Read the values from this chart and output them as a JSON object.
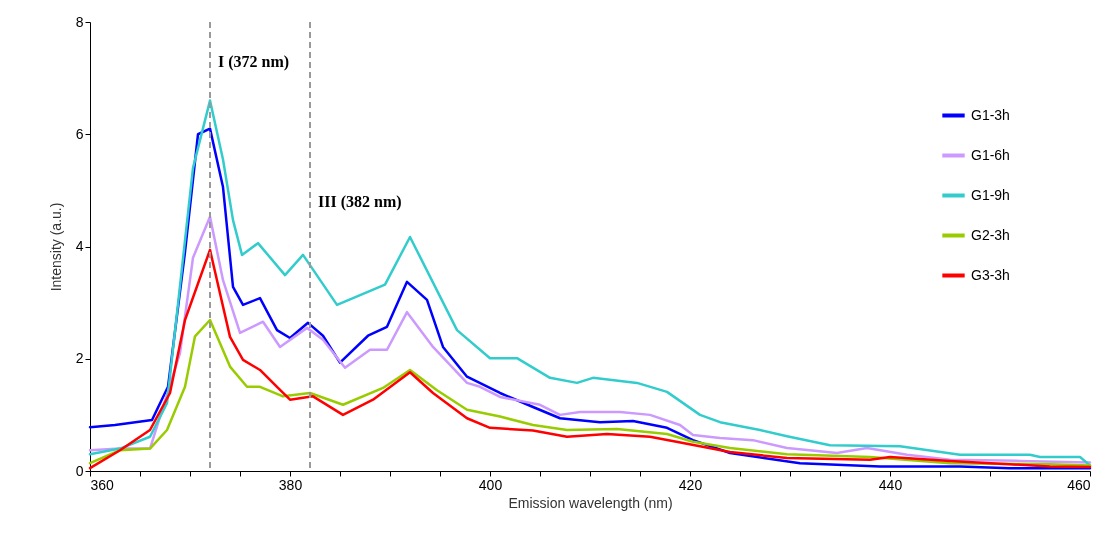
{
  "chart_data": {
    "type": "line",
    "xlabel": "Emission wavelength (nm)",
    "ylabel": "Intensity (a.u.)",
    "xlim": [
      360,
      460
    ],
    "xticks": [
      360,
      {
        "value": 365,
        "label": null
      },
      {
        "value": 370,
        "label": null
      },
      {
        "value": 375,
        "label": null
      },
      380,
      {
        "value": 385,
        "label": null
      },
      {
        "value": 390,
        "label": null
      },
      {
        "value": 395,
        "label": null
      },
      400,
      {
        "value": 405,
        "label": null
      },
      {
        "value": 410,
        "label": null
      },
      {
        "value": 415,
        "label": null
      },
      420,
      {
        "value": 425,
        "label": null
      },
      {
        "value": 430,
        "label": null
      },
      {
        "value": 435,
        "label": null
      },
      440,
      {
        "value": 445,
        "label": null
      },
      {
        "value": 450,
        "label": null
      },
      {
        "value": 455,
        "label": null
      },
      460
    ],
    "ylim": [
      0,
      8
    ],
    "yticks": [
      0,
      2,
      4,
      6,
      8
    ],
    "grid": false,
    "legend": "top right",
    "line_style": "solid",
    "marker": "none",
    "ref_lines": [
      {
        "axis": "x",
        "value": 372,
        "label": "I (372 nm)",
        "color": "#999999",
        "line_style": "dashed"
      },
      {
        "axis": "x",
        "value": 382,
        "label": "III (382  nm)",
        "color": "#999999",
        "line_style": "dashed"
      }
    ],
    "series": [
      {
        "name": "G1-3h",
        "color": "#0000ff",
        "x": [
          360,
          362.5,
          366.2,
          367.8,
          369.5,
          370.8,
          372,
          373.3,
          374.3,
          375.3,
          377,
          378.7,
          380,
          381.8,
          383.3,
          385,
          387.8,
          389.7,
          391.7,
          393.7,
          395.3,
          397.7,
          401,
          404.3,
          407,
          411,
          414.3,
          417.7,
          420.3,
          424,
          431,
          439,
          447,
          452,
          460
        ],
        "values": [
          0.78,
          0.82,
          0.91,
          1.5,
          3.9,
          6.0,
          6.1,
          5.06,
          3.28,
          2.96,
          3.08,
          2.51,
          2.37,
          2.64,
          2.41,
          1.93,
          2.41,
          2.57,
          3.37,
          3.05,
          2.21,
          1.68,
          1.39,
          1.14,
          0.94,
          0.87,
          0.89,
          0.77,
          0.55,
          0.32,
          0.14,
          0.08,
          0.08,
          0.05,
          0.05
        ]
      },
      {
        "name": "G1-6h",
        "color": "#cc99ff",
        "x": [
          360,
          363,
          366,
          369,
          370.3,
          372,
          373.3,
          375,
          377.3,
          379,
          381.7,
          383.3,
          385.5,
          388,
          389.7,
          391.7,
          394.3,
          397.7,
          399,
          401,
          405,
          407,
          409,
          413,
          416,
          419,
          420.3,
          423,
          426.3,
          429.7,
          434.7,
          437.7,
          441.7,
          446,
          453,
          460
        ],
        "values": [
          0.37,
          0.4,
          0.4,
          2.1,
          3.8,
          4.53,
          3.4,
          2.46,
          2.66,
          2.21,
          2.55,
          2.34,
          1.84,
          2.16,
          2.16,
          2.83,
          2.21,
          1.57,
          1.5,
          1.32,
          1.18,
          1.0,
          1.05,
          1.05,
          1.0,
          0.82,
          0.64,
          0.59,
          0.55,
          0.41,
          0.32,
          0.41,
          0.29,
          0.2,
          0.18,
          0.15
        ]
      },
      {
        "name": "G1-9h",
        "color": "#33cccc",
        "x": [
          360,
          363,
          366,
          367.7,
          369,
          370.3,
          372,
          373.3,
          374.3,
          375.2,
          376.8,
          379.5,
          381.3,
          384.7,
          389.5,
          392,
          396.7,
          400,
          402.7,
          406,
          408.7,
          410.3,
          414.7,
          417.7,
          421,
          423,
          427,
          429.7,
          434,
          441,
          447,
          454,
          455,
          459,
          460
        ],
        "values": [
          0.3,
          0.4,
          0.61,
          1.21,
          3.3,
          5.4,
          6.6,
          5.55,
          4.47,
          3.85,
          4.06,
          3.49,
          3.85,
          2.96,
          3.32,
          4.17,
          2.51,
          2.01,
          2.01,
          1.66,
          1.57,
          1.66,
          1.57,
          1.41,
          1.0,
          0.87,
          0.73,
          0.62,
          0.46,
          0.44,
          0.29,
          0.29,
          0.25,
          0.25,
          0.1
        ]
      },
      {
        "name": "G2-3h",
        "color": "#99cc00",
        "x": [
          360,
          363,
          366,
          367.7,
          369.5,
          370.5,
          372,
          374,
          375.7,
          377,
          379.3,
          382,
          385.3,
          389.3,
          392,
          394.7,
          397.7,
          401,
          404.3,
          407.7,
          412.7,
          417.7,
          420.3,
          424,
          429.7,
          438,
          446,
          456,
          460
        ],
        "values": [
          0.14,
          0.37,
          0.4,
          0.73,
          1.5,
          2.4,
          2.69,
          1.86,
          1.5,
          1.5,
          1.33,
          1.39,
          1.18,
          1.48,
          1.8,
          1.44,
          1.09,
          0.97,
          0.82,
          0.73,
          0.75,
          0.66,
          0.52,
          0.41,
          0.3,
          0.25,
          0.14,
          0.12,
          0.1
        ]
      },
      {
        "name": "G3-3h",
        "color": "#ff0000",
        "x": [
          360,
          363,
          366,
          368,
          369.5,
          372,
          374,
          375.3,
          377,
          378.7,
          380,
          382.3,
          385.3,
          388.3,
          392,
          394.3,
          397.7,
          400,
          404.3,
          407.7,
          411.7,
          416,
          419.3,
          424,
          429.7,
          438,
          440,
          446,
          456,
          460
        ],
        "values": [
          0.05,
          0.37,
          0.73,
          1.39,
          2.69,
          3.94,
          2.39,
          1.98,
          1.8,
          1.5,
          1.27,
          1.33,
          1.0,
          1.27,
          1.76,
          1.39,
          0.94,
          0.77,
          0.72,
          0.61,
          0.66,
          0.61,
          0.5,
          0.34,
          0.23,
          0.2,
          0.25,
          0.18,
          0.08,
          0.07
        ]
      }
    ]
  }
}
